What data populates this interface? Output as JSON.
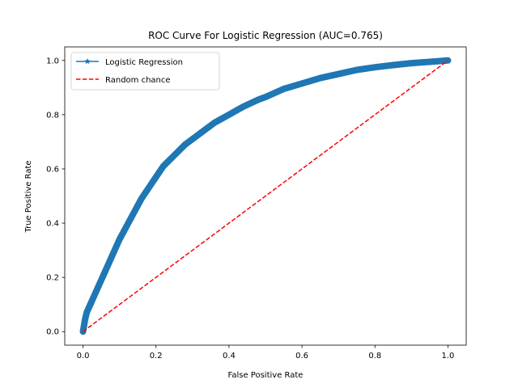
{
  "chart_data": {
    "type": "line",
    "title": "ROC Curve For Logistic Regression (AUC=0.765)",
    "xlabel": "False Positive Rate",
    "ylabel": "True Positive Rate",
    "xlim": [
      -0.05,
      1.05
    ],
    "ylim": [
      -0.05,
      1.05
    ],
    "x_ticks": [
      "0.0",
      "0.2",
      "0.4",
      "0.6",
      "0.8",
      "1.0"
    ],
    "y_ticks": [
      "0.0",
      "0.2",
      "0.4",
      "0.6",
      "0.8",
      "1.0"
    ],
    "x_tick_values": [
      0,
      0.2,
      0.4,
      0.6,
      0.8,
      1.0
    ],
    "y_tick_values": [
      0,
      0.2,
      0.4,
      0.6,
      0.8,
      1.0
    ],
    "grid": false,
    "legend": "top-left",
    "series": [
      {
        "name": "Logistic Regression",
        "color": "#1f77b4",
        "marker": "star",
        "style": "solid",
        "x": [
          0.0,
          0.005,
          0.01,
          0.02,
          0.03,
          0.04,
          0.05,
          0.06,
          0.08,
          0.1,
          0.12,
          0.14,
          0.16,
          0.18,
          0.2,
          0.22,
          0.25,
          0.28,
          0.3,
          0.33,
          0.36,
          0.4,
          0.44,
          0.48,
          0.5,
          0.55,
          0.6,
          0.65,
          0.7,
          0.75,
          0.8,
          0.85,
          0.9,
          0.95,
          1.0
        ],
        "y": [
          0.0,
          0.04,
          0.07,
          0.1,
          0.13,
          0.16,
          0.19,
          0.22,
          0.28,
          0.34,
          0.39,
          0.44,
          0.49,
          0.53,
          0.57,
          0.61,
          0.65,
          0.69,
          0.71,
          0.74,
          0.77,
          0.8,
          0.83,
          0.855,
          0.865,
          0.895,
          0.915,
          0.935,
          0.95,
          0.965,
          0.975,
          0.983,
          0.99,
          0.995,
          1.0
        ]
      },
      {
        "name": "Random chance",
        "color": "#ff0000",
        "style": "dashed",
        "x": [
          0.0,
          1.0
        ],
        "y": [
          0.0,
          1.0
        ]
      }
    ]
  }
}
